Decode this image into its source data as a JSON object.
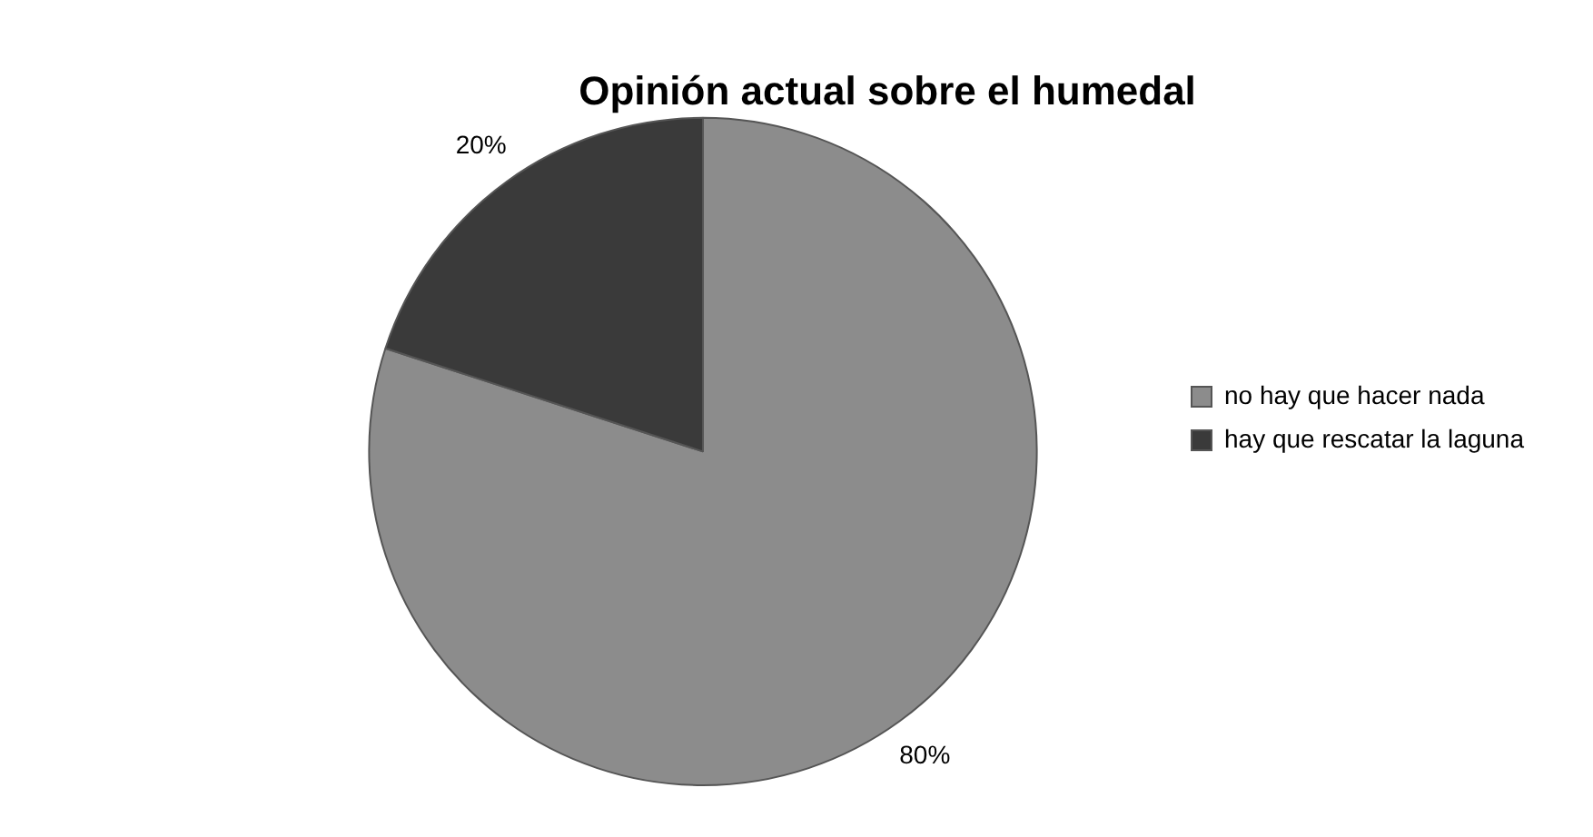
{
  "chart_data": {
    "type": "pie",
    "title": "Opinión actual sobre el humedal",
    "categories": [
      "no hay que hacer nada",
      "hay que rescatar la laguna"
    ],
    "values": [
      80,
      20
    ],
    "colors": [
      "#8c8c8c",
      "#3a3a3a"
    ],
    "value_labels": [
      "80%",
      "20%"
    ],
    "legend": "right"
  }
}
